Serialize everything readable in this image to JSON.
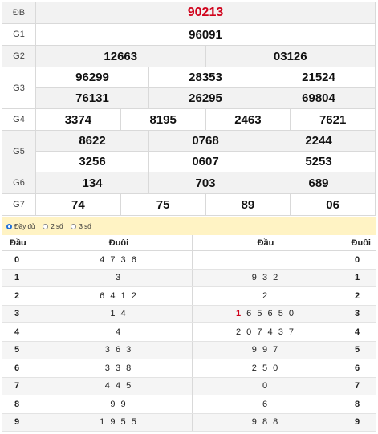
{
  "prizes": {
    "db": {
      "label": "ĐB",
      "value": "90213"
    },
    "g1": {
      "label": "G1",
      "value": "96091"
    },
    "g2": {
      "label": "G2",
      "values": [
        "12663",
        "03126"
      ]
    },
    "g3": {
      "label": "G3",
      "values": [
        "96299",
        "28353",
        "21524",
        "76131",
        "26295",
        "69804"
      ]
    },
    "g4": {
      "label": "G4",
      "values": [
        "3374",
        "8195",
        "2463",
        "7621"
      ]
    },
    "g5": {
      "label": "G5",
      "values": [
        "8622",
        "0768",
        "2244",
        "3256",
        "0607",
        "5253"
      ]
    },
    "g6": {
      "label": "G6",
      "values": [
        "134",
        "703",
        "689"
      ]
    },
    "g7": {
      "label": "G7",
      "values": [
        "74",
        "75",
        "89",
        "06"
      ]
    }
  },
  "options": {
    "full": "Đầy đủ",
    "two": "2 số",
    "three": "3 số",
    "selected": "full"
  },
  "loto": {
    "headers": {
      "dau_left": "Đầu",
      "duoi_left": "Đuôi",
      "dau_right": "Đầu",
      "duoi_right": "Đuôi"
    },
    "rows": [
      {
        "head": "0",
        "tails": "4 7 3 6",
        "heads": "",
        "tail": "0"
      },
      {
        "head": "1",
        "tails": "3",
        "heads": "9 3 2",
        "tail": "1"
      },
      {
        "head": "2",
        "tails": "6 4 1 2",
        "heads": "2",
        "tail": "2"
      },
      {
        "head": "3",
        "tails": "1 4",
        "heads": "1 6 5 6 5 0",
        "tail": "3"
      },
      {
        "head": "4",
        "tails": "4",
        "heads": "2 0 7 4 3 7",
        "tail": "4"
      },
      {
        "head": "5",
        "tails": "3 6 3",
        "heads": "9 9 7",
        "tail": "5"
      },
      {
        "head": "6",
        "tails": "3 3 8",
        "heads": "2 5 0",
        "tail": "6"
      },
      {
        "head": "7",
        "tails": "4 4 5",
        "heads": "0",
        "tail": "7"
      },
      {
        "head": "8",
        "tails": "9 9",
        "heads": "6",
        "tail": "8"
      },
      {
        "head": "9",
        "tails": "1 9 5 5",
        "heads": "9 8 8",
        "tail": "9"
      }
    ]
  },
  "colors": {
    "special": "#d0021b",
    "option_bar": "#fff3c4"
  }
}
